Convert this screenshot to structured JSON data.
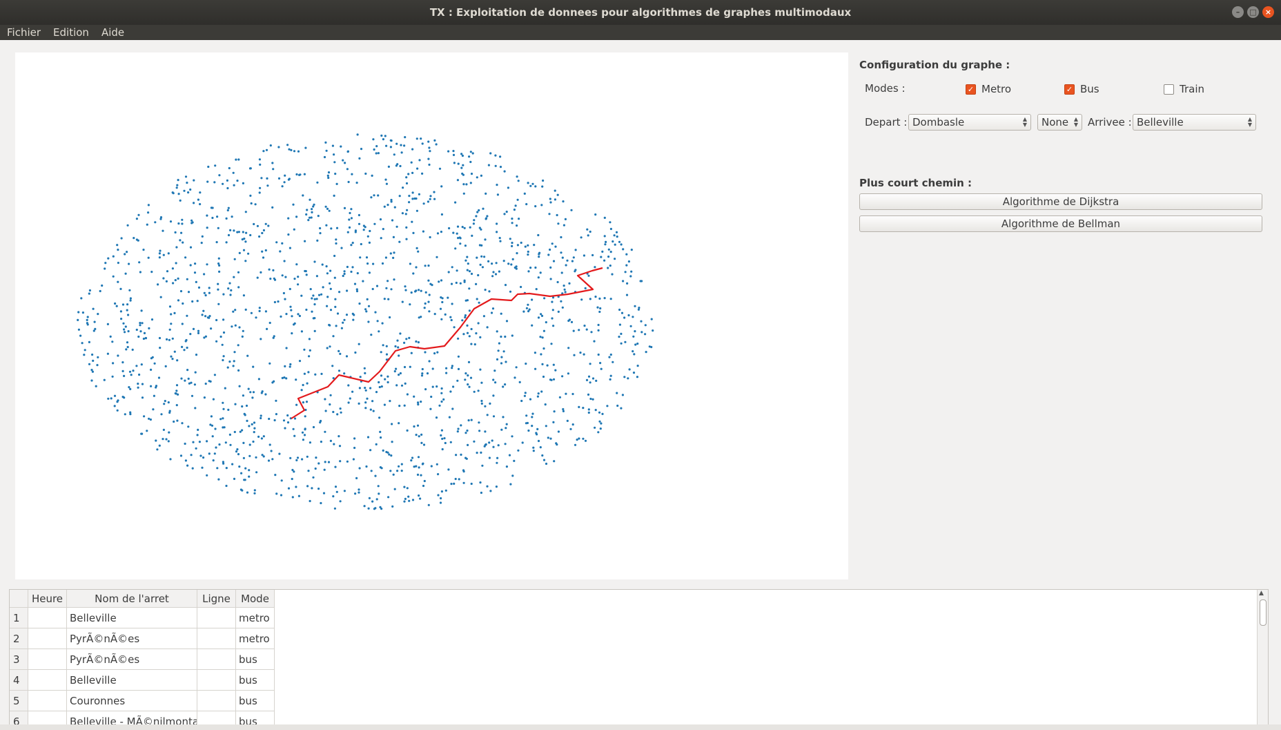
{
  "window": {
    "title": "TX : Exploitation de donnees pour algorithmes de graphes multimodaux",
    "controls": [
      "minimize",
      "maximize",
      "close"
    ]
  },
  "menubar": {
    "items": [
      "Fichier",
      "Edition",
      "Aide"
    ]
  },
  "config": {
    "section_title": "Configuration du graphe :",
    "modes_label": "Modes :",
    "modes": [
      {
        "label": "Metro",
        "checked": true
      },
      {
        "label": "Bus",
        "checked": true
      },
      {
        "label": "Train",
        "checked": false
      }
    ],
    "depart_label": "Depart :",
    "depart_value": "Dombasle",
    "time_value": "None",
    "arrivee_label": "Arrivee :",
    "arrivee_value": "Belleville"
  },
  "shortest_path": {
    "section_title": "Plus court chemin :",
    "dijkstra_button": "Algorithme de Dijkstra",
    "bellman_button": "Algorithme de Bellman"
  },
  "graph": {
    "node_color": "#1f77b4",
    "path_color": "#e31a1c"
  },
  "table": {
    "headers": [
      "",
      "Heure",
      "Nom de l'arret",
      "Ligne",
      "Mode"
    ],
    "rows": [
      {
        "num": "1",
        "heure": "",
        "nom": "Belleville",
        "ligne": "",
        "mode": "metro"
      },
      {
        "num": "2",
        "heure": "",
        "nom": "PyrÃ©nÃ©es",
        "ligne": "",
        "mode": "metro"
      },
      {
        "num": "3",
        "heure": "",
        "nom": "PyrÃ©nÃ©es",
        "ligne": "",
        "mode": "bus"
      },
      {
        "num": "4",
        "heure": "",
        "nom": "Belleville",
        "ligne": "",
        "mode": "bus"
      },
      {
        "num": "5",
        "heure": "",
        "nom": "Couronnes",
        "ligne": "",
        "mode": "bus"
      },
      {
        "num": "6",
        "heure": "",
        "nom": "Belleville - MÃ©nilmontant",
        "ligne": "",
        "mode": "bus"
      }
    ]
  }
}
